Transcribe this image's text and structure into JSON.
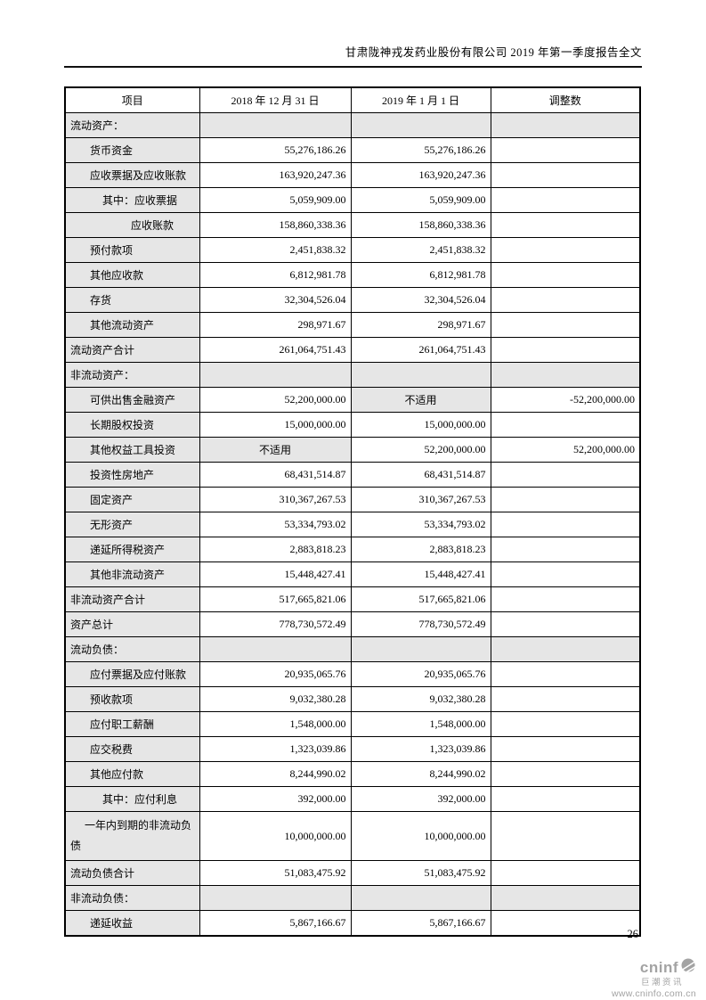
{
  "header": {
    "title": "甘肃陇神戎发药业股份有限公司 2019 年第一季度报告全文"
  },
  "table": {
    "columns": [
      "项目",
      "2018 年 12 月 31 日",
      "2019 年 1 月 1 日",
      "调整数"
    ],
    "na_text": "不适用",
    "rows": [
      {
        "label": "流动资产：",
        "section": true,
        "indent": 0,
        "v2018": "",
        "v2019": "",
        "adj": ""
      },
      {
        "label": "货币资金",
        "indent": 1,
        "v2018": "55,276,186.26",
        "v2019": "55,276,186.26",
        "adj": ""
      },
      {
        "label": "应收票据及应收账款",
        "indent": 1,
        "v2018": "163,920,247.36",
        "v2019": "163,920,247.36",
        "adj": ""
      },
      {
        "label": "其中：应收票据",
        "indent": 2,
        "v2018": "5,059,909.00",
        "v2019": "5,059,909.00",
        "adj": ""
      },
      {
        "label": "应收账款",
        "indent": 3,
        "v2018": "158,860,338.36",
        "v2019": "158,860,338.36",
        "adj": ""
      },
      {
        "label": "预付款项",
        "indent": 1,
        "v2018": "2,451,838.32",
        "v2019": "2,451,838.32",
        "adj": ""
      },
      {
        "label": "其他应收款",
        "indent": 1,
        "v2018": "6,812,981.78",
        "v2019": "6,812,981.78",
        "adj": ""
      },
      {
        "label": "存货",
        "indent": 1,
        "v2018": "32,304,526.04",
        "v2019": "32,304,526.04",
        "adj": ""
      },
      {
        "label": "其他流动资产",
        "indent": 1,
        "v2018": "298,971.67",
        "v2019": "298,971.67",
        "adj": ""
      },
      {
        "label": "流动资产合计",
        "indent": 0,
        "v2018": "261,064,751.43",
        "v2019": "261,064,751.43",
        "adj": ""
      },
      {
        "label": "非流动资产：",
        "section": true,
        "indent": 0,
        "v2018": "",
        "v2019": "",
        "adj": ""
      },
      {
        "label": "可供出售金融资产",
        "indent": 1,
        "v2018": "52,200,000.00",
        "v2019": "",
        "v2019_na": true,
        "adj": "-52,200,000.00"
      },
      {
        "label": "长期股权投资",
        "indent": 1,
        "v2018": "15,000,000.00",
        "v2019": "15,000,000.00",
        "adj": ""
      },
      {
        "label": "其他权益工具投资",
        "indent": 1,
        "v2018": "",
        "v2018_na": true,
        "v2019": "52,200,000.00",
        "adj": "52,200,000.00"
      },
      {
        "label": "投资性房地产",
        "indent": 1,
        "v2018": "68,431,514.87",
        "v2019": "68,431,514.87",
        "adj": ""
      },
      {
        "label": "固定资产",
        "indent": 1,
        "v2018": "310,367,267.53",
        "v2019": "310,367,267.53",
        "adj": ""
      },
      {
        "label": "无形资产",
        "indent": 1,
        "v2018": "53,334,793.02",
        "v2019": "53,334,793.02",
        "adj": ""
      },
      {
        "label": "递延所得税资产",
        "indent": 1,
        "v2018": "2,883,818.23",
        "v2019": "2,883,818.23",
        "adj": ""
      },
      {
        "label": "其他非流动资产",
        "indent": 1,
        "v2018": "15,448,427.41",
        "v2019": "15,448,427.41",
        "adj": ""
      },
      {
        "label": "非流动资产合计",
        "indent": 0,
        "v2018": "517,665,821.06",
        "v2019": "517,665,821.06",
        "adj": ""
      },
      {
        "label": "资产总计",
        "indent": 0,
        "v2018": "778,730,572.49",
        "v2019": "778,730,572.49",
        "adj": ""
      },
      {
        "label": "流动负债：",
        "section": true,
        "indent": 0,
        "v2018": "",
        "v2019": "",
        "adj": ""
      },
      {
        "label": "应付票据及应付账款",
        "indent": 1,
        "v2018": "20,935,065.76",
        "v2019": "20,935,065.76",
        "adj": ""
      },
      {
        "label": "预收款项",
        "indent": 1,
        "v2018": "9,032,380.28",
        "v2019": "9,032,380.28",
        "adj": ""
      },
      {
        "label": "应付职工薪酬",
        "indent": 1,
        "v2018": "1,548,000.00",
        "v2019": "1,548,000.00",
        "adj": ""
      },
      {
        "label": "应交税费",
        "indent": 1,
        "v2018": "1,323,039.86",
        "v2019": "1,323,039.86",
        "adj": ""
      },
      {
        "label": "其他应付款",
        "indent": 1,
        "v2018": "8,244,990.02",
        "v2019": "8,244,990.02",
        "adj": ""
      },
      {
        "label": "其中：应付利息",
        "indent": 2,
        "v2018": "392,000.00",
        "v2019": "392,000.00",
        "adj": ""
      },
      {
        "label": "一年内到期的非流动负债",
        "indent": 0,
        "wrap": true,
        "tall": true,
        "v2018": "10,000,000.00",
        "v2019": "10,000,000.00",
        "adj": ""
      },
      {
        "label": "流动负债合计",
        "indent": 0,
        "v2018": "51,083,475.92",
        "v2019": "51,083,475.92",
        "adj": ""
      },
      {
        "label": "非流动负债：",
        "section": true,
        "indent": 0,
        "v2018": "",
        "v2019": "",
        "adj": ""
      },
      {
        "label": "递延收益",
        "indent": 1,
        "v2018": "5,867,166.67",
        "v2019": "5,867,166.67",
        "adj": ""
      }
    ]
  },
  "footer": {
    "page_number": "26",
    "logo": {
      "brand": "cninf",
      "brand_cn": "巨潮资讯",
      "url": "www.cninfo.com.cn"
    }
  },
  "colors": {
    "cell_grey": "#e6e6e6",
    "border_black": "#000000",
    "logo_grey": "#a3a3a3"
  }
}
